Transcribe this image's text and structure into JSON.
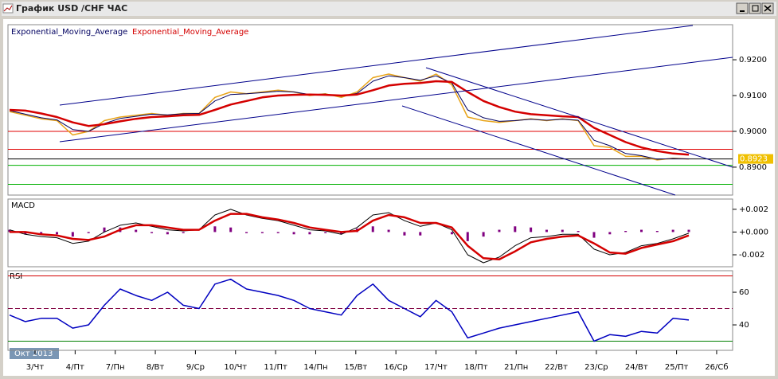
{
  "window": {
    "title": "График USD /CHF ЧАС"
  },
  "x_axis": {
    "labels": [
      "3/Чт",
      "4/Пт",
      "7/Пн",
      "8/Вт",
      "9/Ср",
      "10/Чт",
      "11/Пт",
      "14/Пн",
      "15/Вт",
      "16/Ср",
      "17/Чт",
      "18/Пт",
      "21/Пн",
      "22/Вт",
      "23/Ср",
      "24/Вт",
      "25/Пт",
      "26/Сб"
    ],
    "period": "Окт 2013"
  },
  "chart_data": [
    {
      "type": "line",
      "ylim": [
        0.8822,
        0.9298
      ],
      "yticks": [
        {
          "value": 0.89,
          "label": "0.8900"
        },
        {
          "value": 0.9,
          "label": "0.9000"
        },
        {
          "value": 0.91,
          "label": "0.9100"
        },
        {
          "value": 0.92,
          "label": "0.9200"
        }
      ],
      "last": 0.8923,
      "hlines": [
        {
          "value": 0.9,
          "color": "#e00000"
        },
        {
          "value": 0.895,
          "color": "#e00000"
        },
        {
          "value": 0.8923,
          "color": "#000000"
        },
        {
          "value": 0.8905,
          "color": "#00b000"
        },
        {
          "value": 0.8852,
          "color": "#00b000"
        }
      ],
      "series": [
        {
          "color": "#e8a317",
          "values": [
            0.9055,
            0.9045,
            0.9035,
            0.903,
            0.899,
            0.9,
            0.903,
            0.904,
            0.9045,
            0.905,
            0.9045,
            0.905,
            0.905,
            0.9095,
            0.911,
            0.9105,
            0.911,
            0.9115,
            0.911,
            0.91,
            0.9105,
            0.9095,
            0.911,
            0.915,
            0.916,
            0.915,
            0.914,
            0.916,
            0.913,
            0.904,
            0.903,
            0.9025,
            0.903,
            0.9035,
            0.903,
            0.9035,
            0.903,
            0.896,
            0.8955,
            0.893,
            0.893,
            0.892,
            0.8925,
            0.8923
          ]
        },
        {
          "name": "Exponential_Moving_Average",
          "color": "#000060",
          "width": 1,
          "values": [
            0.9058,
            0.9048,
            0.9038,
            0.9032,
            0.9005,
            0.9,
            0.9022,
            0.9036,
            0.9042,
            0.9048,
            0.9046,
            0.9049,
            0.905,
            0.9085,
            0.9103,
            0.9105,
            0.9108,
            0.9112,
            0.911,
            0.9103,
            0.9104,
            0.9098,
            0.9106,
            0.914,
            0.9155,
            0.915,
            0.9143,
            0.9155,
            0.9135,
            0.906,
            0.9038,
            0.9028,
            0.903,
            0.9034,
            0.9031,
            0.9034,
            0.9031,
            0.8975,
            0.896,
            0.8938,
            0.8932,
            0.8922,
            0.8924,
            0.8923
          ]
        },
        {
          "name": "Exponential_Moving_Average",
          "color": "#d40000",
          "width": 2.5,
          "values": [
            0.906,
            0.9058,
            0.905,
            0.904,
            0.9025,
            0.9015,
            0.902,
            0.9028,
            0.9035,
            0.904,
            0.9042,
            0.9045,
            0.9046,
            0.906,
            0.9075,
            0.9085,
            0.9095,
            0.91,
            0.9102,
            0.9103,
            0.9102,
            0.91,
            0.9103,
            0.9115,
            0.9128,
            0.9133,
            0.9135,
            0.914,
            0.9138,
            0.911,
            0.9085,
            0.9068,
            0.9055,
            0.9048,
            0.9045,
            0.9042,
            0.904,
            0.901,
            0.899,
            0.897,
            0.8955,
            0.8945,
            0.8938,
            0.8935
          ]
        }
      ]
    },
    {
      "type": "line",
      "title": "MACD",
      "ylim": [
        -0.00305,
        0.0029
      ],
      "yticks": [
        {
          "value": -0.002,
          "label": "-0.002"
        },
        {
          "value": 0,
          "label": "+0.000"
        },
        {
          "value": 0.002,
          "label": "+0.002"
        }
      ],
      "series": [
        {
          "type": "bar",
          "color": "#800080",
          "values": [
            0.0002,
            -0.0002,
            -0.0002,
            -0.0002,
            -0.0004,
            -0.0001,
            0.0004,
            0.0004,
            0.0002,
            -0.0001,
            -0.0002,
            -0.0001,
            0,
            0.0005,
            0.0004,
            -0.0001,
            -0.0001,
            -0.0001,
            -0.0002,
            -0.0002,
            -0.0001,
            -0.0002,
            0.0003,
            0.0005,
            0.0002,
            -0.0003,
            -0.0003,
            0,
            -0.0002,
            -0.0008,
            -0.0004,
            0.0002,
            0.0005,
            0.0004,
            0.0002,
            0.0002,
            0.0001,
            -0.0005,
            -0.0002,
            0.0001,
            0.0002,
            0.0001,
            0.0002,
            0.0002
          ]
        },
        {
          "color": "#000000",
          "width": 1,
          "values": [
            0.0002,
            -0.0002,
            -0.0004,
            -0.0005,
            -0.001,
            -0.0008,
            0,
            0.0006,
            0.0008,
            0.0005,
            0.0002,
            0.0001,
            0.0002,
            0.0015,
            0.002,
            0.0015,
            0.0012,
            0.001,
            0.0006,
            0.0002,
            0.0001,
            -0.0002,
            0.0004,
            0.0015,
            0.0017,
            0.001,
            0.0005,
            0.0008,
            0.0002,
            -0.002,
            -0.0027,
            -0.0022,
            -0.0012,
            -0.0005,
            -0.0004,
            -0.0002,
            -0.0002,
            -0.0015,
            -0.002,
            -0.0018,
            -0.0012,
            -0.001,
            -0.0006,
            -0.0001
          ]
        },
        {
          "color": "#d40000",
          "width": 2.5,
          "values": [
            0,
            0,
            -0.0002,
            -0.0003,
            -0.0006,
            -0.0007,
            -0.0004,
            0.0002,
            0.0006,
            0.0006,
            0.0004,
            0.0002,
            0.0002,
            0.001,
            0.0016,
            0.0016,
            0.0013,
            0.0011,
            0.0008,
            0.0004,
            0.0002,
            0,
            0.0001,
            0.001,
            0.0015,
            0.0013,
            0.0008,
            0.0008,
            0.0004,
            -0.0012,
            -0.0023,
            -0.0024,
            -0.0017,
            -0.0009,
            -0.0006,
            -0.0004,
            -0.0003,
            -0.001,
            -0.0018,
            -0.0019,
            -0.0014,
            -0.0011,
            -0.0008,
            -0.0003
          ]
        }
      ]
    },
    {
      "type": "line",
      "title": "RSI",
      "ylim": [
        24.4,
        73.2
      ],
      "yticks": [
        40,
        60
      ],
      "hlines": [
        {
          "value": 70,
          "color": "#d40000"
        },
        {
          "value": 50,
          "color": "#800040",
          "dashed": true
        },
        {
          "value": 30,
          "color": "#008000"
        }
      ],
      "series": [
        {
          "color": "#0000c0",
          "width": 1.5,
          "values": [
            46,
            42,
            44,
            44,
            38,
            40,
            52,
            62,
            58,
            55,
            60,
            52,
            50,
            65,
            68,
            62,
            60,
            58,
            55,
            50,
            48,
            46,
            58,
            65,
            55,
            50,
            45,
            55,
            48,
            32,
            35,
            38,
            40,
            42,
            44,
            46,
            48,
            30,
            34,
            33,
            36,
            35,
            44,
            43
          ]
        }
      ]
    }
  ]
}
